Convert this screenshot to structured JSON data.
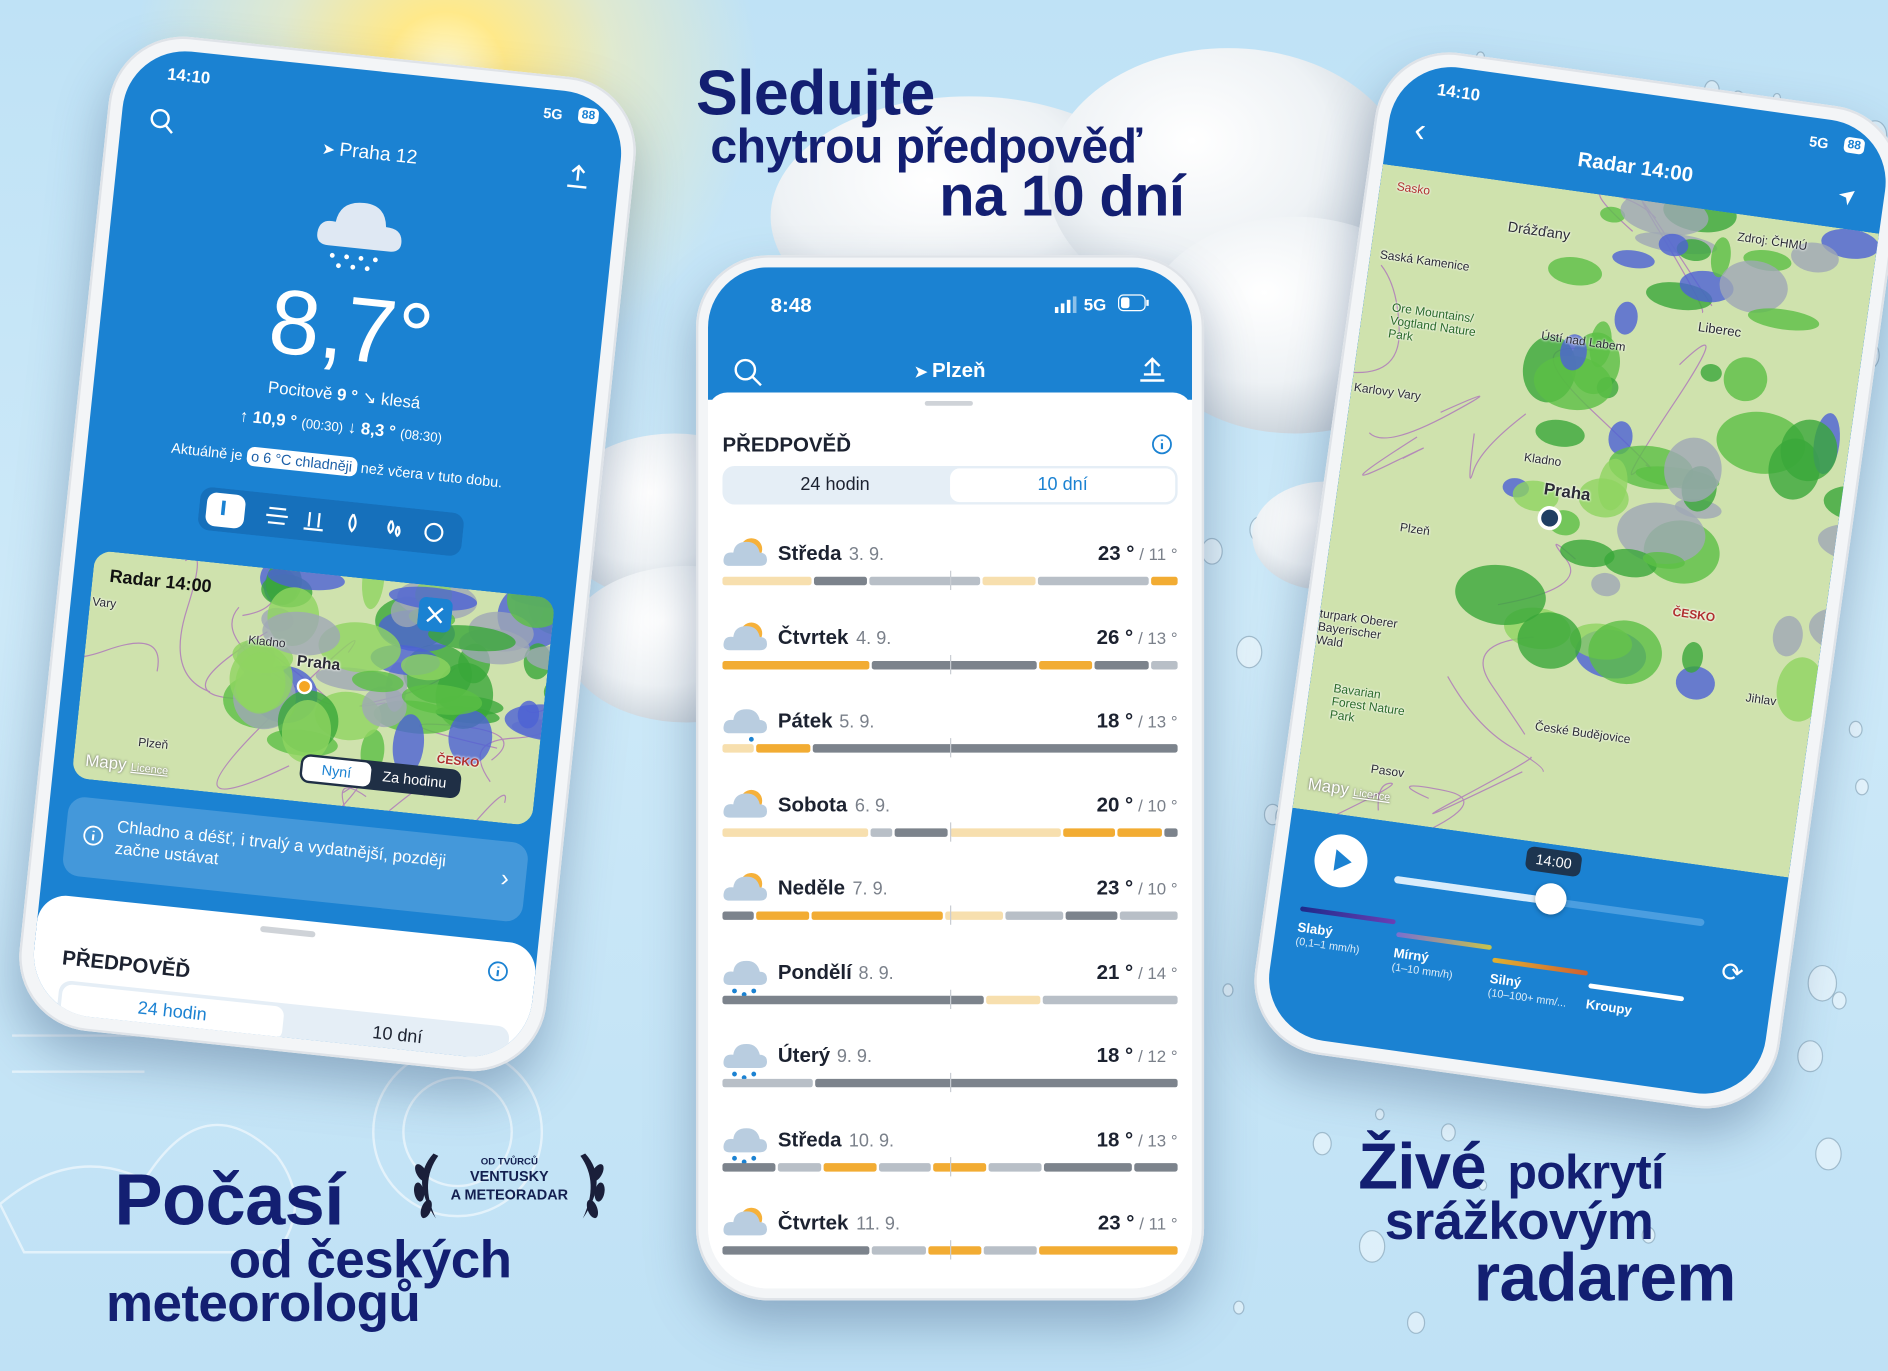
{
  "headline_top": {
    "line1": "Sledujte",
    "line2": "chytrou předpověď",
    "line3": "na 10 dní"
  },
  "headline_left": {
    "line1": "Počasí",
    "line2": "od českých",
    "line3": "meteorologů"
  },
  "badge": {
    "line1": "OD TVŮRCŮ",
    "line2": "VENTUSKY",
    "line3": "A METEORADAR"
  },
  "headline_right": {
    "line1": "Živé",
    "line2": "pokrytí",
    "line3": "srážkovým",
    "line4": "radarem"
  },
  "phone_left": {
    "status_time": "14:10",
    "network": "5G",
    "battery": "88",
    "location": "Praha 12",
    "temperature": "8,7°",
    "feels_label": "Pocitově",
    "feels_value": "9 °",
    "trend": "↘ klesá",
    "max": "↑ 10,9 °",
    "max_time": "(00:30)",
    "min": "↓ 8,3 °",
    "min_time": "(08:30)",
    "compare_before": "Aktuálně je",
    "compare_highlight": "o 6 °C chladněji",
    "compare_after": "než včera v tuto dobu.",
    "radar_title": "Radar 14:00",
    "map_labels": [
      "Vary",
      "Kladno",
      "Praha",
      "Plzeň",
      "ČESKO"
    ],
    "radar_buttons": [
      "Nyní",
      "Za hodinu"
    ],
    "maps_brand": "Mapy",
    "licence": "Licence",
    "summary": "Chladno a déšť, i trvalý a vydatnější, později začne ustávat",
    "forecast_heading": "PŘEDPOVĚĎ",
    "tabs": [
      "24 hodin",
      "10 dní"
    ]
  },
  "phone_middle": {
    "status_time": "8:48",
    "network": "5G",
    "location": "Plzeň",
    "forecast_heading": "PŘEDPOVĚĎ",
    "tabs": [
      "24 hodin",
      "10 dní"
    ],
    "days": [
      {
        "day": "Středa",
        "date": "3. 9.",
        "max": "23 °",
        "min": "/ 11 °"
      },
      {
        "day": "Čtvrtek",
        "date": "4. 9.",
        "max": "26 °",
        "min": "/ 13 °"
      },
      {
        "day": "Pátek",
        "date": "5. 9.",
        "max": "18 °",
        "min": "/ 13 °"
      },
      {
        "day": "Sobota",
        "date": "6. 9.",
        "max": "20 °",
        "min": "/ 10 °"
      },
      {
        "day": "Neděle",
        "date": "7. 9.",
        "max": "23 °",
        "min": "/ 10 °"
      },
      {
        "day": "Pondělí",
        "date": "8. 9.",
        "max": "21 °",
        "min": "/ 14 °"
      },
      {
        "day": "Úterý",
        "date": "9. 9.",
        "max": "18 °",
        "min": "/ 12 °"
      },
      {
        "day": "Středa",
        "date": "10. 9.",
        "max": "18 °",
        "min": "/ 13 °"
      },
      {
        "day": "Čtvrtek",
        "date": "11. 9.",
        "max": "23 °",
        "min": "/ 11 °"
      }
    ]
  },
  "phone_right": {
    "status_time": "14:10",
    "network": "5G",
    "battery": "88",
    "title": "Radar 14:00",
    "source": "Zdroj: ČHMÚ",
    "map_labels": [
      "Sasko",
      "Drážďany",
      "Saská Kamenice",
      "Ore Mountains/ Vogtland Nature Park",
      "Ústí nad Labem",
      "Liberec",
      "Karlovy Vary",
      "Kladno",
      "Praha",
      "Plzeň",
      "ČESKO",
      "Jihlav",
      "turpark Oberer Bayerischer Wald",
      "Bavarian Forest Nature Park",
      "České Budějovice",
      "Pasov"
    ],
    "maps_brand": "Mapy",
    "licence": "Licence",
    "slider_time": "14:00",
    "legend": [
      {
        "name": "Slabý",
        "range": "(0,1–1 mm/h)"
      },
      {
        "name": "Mírný",
        "range": "(1–10 mm/h)"
      },
      {
        "name": "Silný",
        "range": "(10–100+ mm/..."
      },
      {
        "name": "Kroupy",
        "range": null
      }
    ]
  }
}
